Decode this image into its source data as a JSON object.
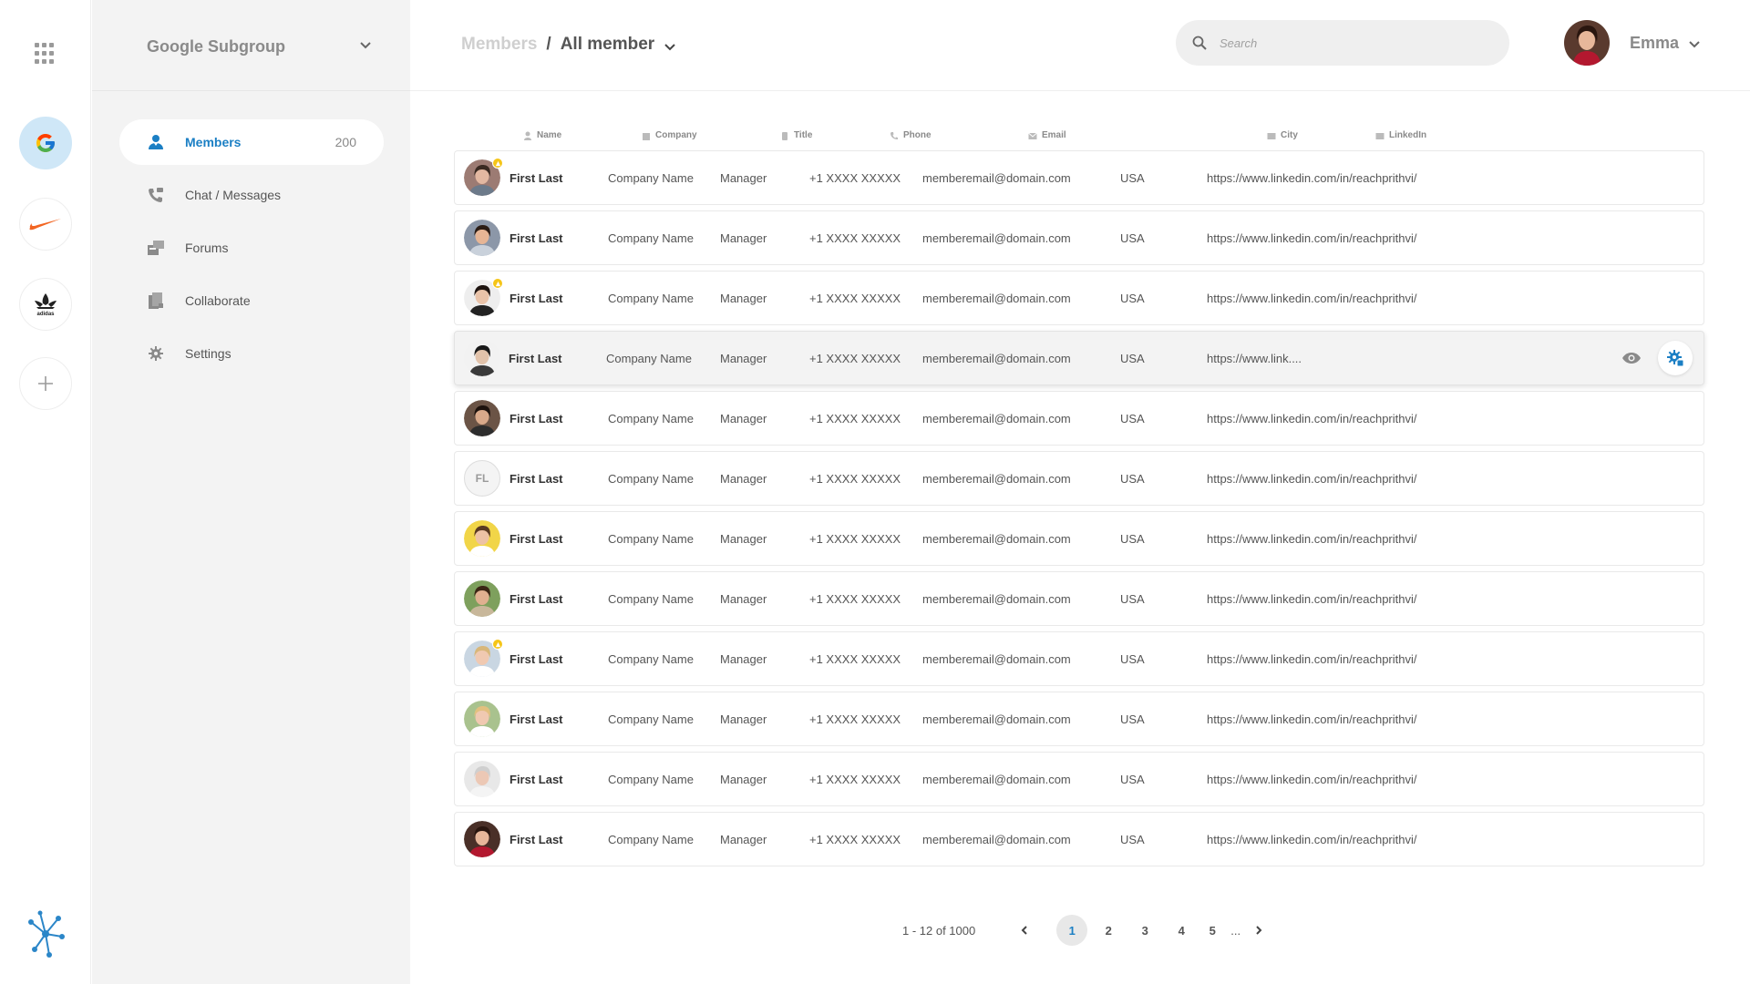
{
  "rail": {
    "apps_icon": "grid-dots-icon",
    "orgs": [
      {
        "name": "google-logo",
        "active": true
      },
      {
        "name": "nike-logo",
        "active": false
      },
      {
        "name": "adidas-logo",
        "active": false
      }
    ],
    "add_icon": "plus-icon",
    "network_icon": "network-icon"
  },
  "sidebar": {
    "group_name": "Google Subgroup",
    "items": [
      {
        "label": "Members",
        "count": "200",
        "icon": "member-icon",
        "active": true
      },
      {
        "label": "Chat / Messages",
        "icon": "chat-phone-icon"
      },
      {
        "label": "Forums",
        "icon": "forums-icon"
      },
      {
        "label": "Collaborate",
        "icon": "collaborate-icon"
      },
      {
        "label": "Settings",
        "icon": "gear-icon"
      }
    ]
  },
  "header": {
    "breadcrumb_root": "Members",
    "breadcrumb_sep": "/",
    "breadcrumb_current": "All member",
    "search_placeholder": "Search",
    "user_name": "Emma"
  },
  "table": {
    "columns": [
      "Name",
      "Company",
      "Title",
      "Phone",
      "Email",
      "City",
      "LinkedIn"
    ],
    "rows": [
      {
        "name": "First Last",
        "company": "Company Name",
        "title": "Manager",
        "phone": "+1 XXXX XXXXX",
        "email": "memberemail@domain.com",
        "city": "USA",
        "linkedin": "https://www.linkedin.com/in/reachprithvi/",
        "badge": true,
        "avatar": "man-glasses"
      },
      {
        "name": "First Last",
        "company": "Company Name",
        "title": "Manager",
        "phone": "+1 XXXX XXXXX",
        "email": "memberemail@domain.com",
        "city": "USA",
        "linkedin": "https://www.linkedin.com/in/reachprithvi/",
        "badge": false,
        "avatar": "man-smile"
      },
      {
        "name": "First Last",
        "company": "Company Name",
        "title": "Manager",
        "phone": "+1 XXXX XXXXX",
        "email": "memberemail@domain.com",
        "city": "USA",
        "linkedin": "https://www.linkedin.com/in/reachprithvi/",
        "badge": true,
        "avatar": "woman-dark"
      },
      {
        "name": "First Last",
        "company": "Company Name",
        "title": "Manager",
        "phone": "+1 XXXX XXXXX",
        "email": "memberemail@domain.com",
        "city": "USA",
        "linkedin": "https://www.link....",
        "badge": false,
        "avatar": "man-beard",
        "hover": true
      },
      {
        "name": "First Last",
        "company": "Company Name",
        "title": "Manager",
        "phone": "+1 XXXX XXXXX",
        "email": "memberemail@domain.com",
        "city": "USA",
        "linkedin": "https://www.linkedin.com/in/reachprithvi/",
        "badge": false,
        "avatar": "man-dark"
      },
      {
        "name": "First Last",
        "company": "Company Name",
        "title": "Manager",
        "phone": "+1 XXXX XXXXX",
        "email": "memberemail@domain.com",
        "city": "USA",
        "linkedin": "https://www.linkedin.com/in/reachprithvi/",
        "badge": false,
        "initials": "FL"
      },
      {
        "name": "First Last",
        "company": "Company Name",
        "title": "Manager",
        "phone": "+1 XXXX XXXXX",
        "email": "memberemail@domain.com",
        "city": "USA",
        "linkedin": "https://www.linkedin.com/in/reachprithvi/",
        "badge": false,
        "avatar": "woman-yellow"
      },
      {
        "name": "First Last",
        "company": "Company Name",
        "title": "Manager",
        "phone": "+1 XXXX XXXXX",
        "email": "memberemail@domain.com",
        "city": "USA",
        "linkedin": "https://www.linkedin.com/in/reachprithvi/",
        "badge": false,
        "avatar": "man-green"
      },
      {
        "name": "First Last",
        "company": "Company Name",
        "title": "Manager",
        "phone": "+1 XXXX XXXXX",
        "email": "memberemail@domain.com",
        "city": "USA",
        "linkedin": "https://www.linkedin.com/in/reachprithvi/",
        "badge": true,
        "avatar": "woman-blonde"
      },
      {
        "name": "First Last",
        "company": "Company Name",
        "title": "Manager",
        "phone": "+1 XXXX XXXXX",
        "email": "memberemail@domain.com",
        "city": "USA",
        "linkedin": "https://www.linkedin.com/in/reachprithvi/",
        "badge": false,
        "avatar": "woman-blonde2"
      },
      {
        "name": "First Last",
        "company": "Company Name",
        "title": "Manager",
        "phone": "+1 XXXX XXXXX",
        "email": "memberemail@domain.com",
        "city": "USA",
        "linkedin": "https://www.linkedin.com/in/reachprithvi/",
        "badge": false,
        "avatar": "woman-grey"
      },
      {
        "name": "First Last",
        "company": "Company Name",
        "title": "Manager",
        "phone": "+1 XXXX XXXXX",
        "email": "memberemail@domain.com",
        "city": "USA",
        "linkedin": "https://www.linkedin.com/in/reachprithvi/",
        "badge": false,
        "avatar": "woman-red"
      }
    ],
    "row_actions": {
      "view_icon": "eye-icon",
      "settings_icon": "gear-settings-icon"
    }
  },
  "pagination": {
    "info": "1 - 12 of 1000",
    "pages": [
      "1",
      "2",
      "3",
      "4",
      "5"
    ],
    "current": "1",
    "ellipsis": "..."
  },
  "colors": {
    "accent": "#1b7fc4",
    "sidebar_bg": "#f3f3f3",
    "badge": "#f5c518"
  }
}
